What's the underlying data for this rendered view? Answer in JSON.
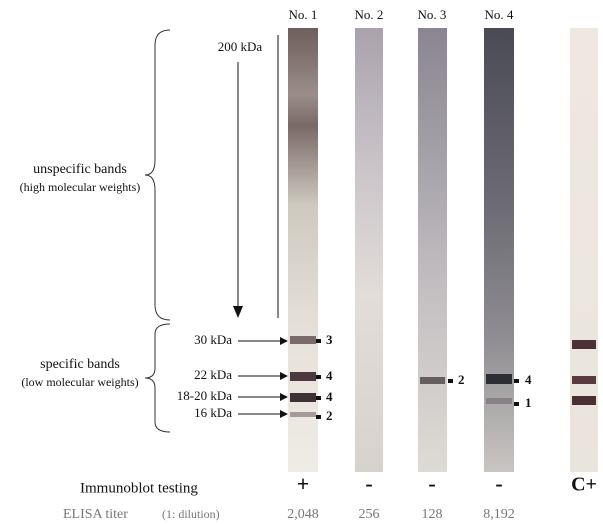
{
  "lanes": [
    "No. 1",
    "No. 2",
    "No. 3",
    "No. 4"
  ],
  "marker_200": "200 kDa",
  "unspecific": {
    "title": "unspecific bands",
    "note": "(high molecular weights)"
  },
  "specific": {
    "title": "specific bands",
    "note": "(low molecular weights)"
  },
  "band_sizes": [
    "30 kDa",
    "22 kDa",
    "18-20 kDa",
    "16 kDa"
  ],
  "scores_no1": [
    "3",
    "4",
    "4",
    "2"
  ],
  "scores_no3": [
    "2"
  ],
  "scores_no4": [
    "4",
    "1"
  ],
  "immunoblot": {
    "label": "Immunoblot testing",
    "results": [
      "+",
      "-",
      "-",
      "-",
      "C+"
    ]
  },
  "elisa": {
    "label": "ELISA titer",
    "unit": "(1: dilution)",
    "titers": [
      "2,048",
      "256",
      "128",
      "8,192"
    ]
  }
}
